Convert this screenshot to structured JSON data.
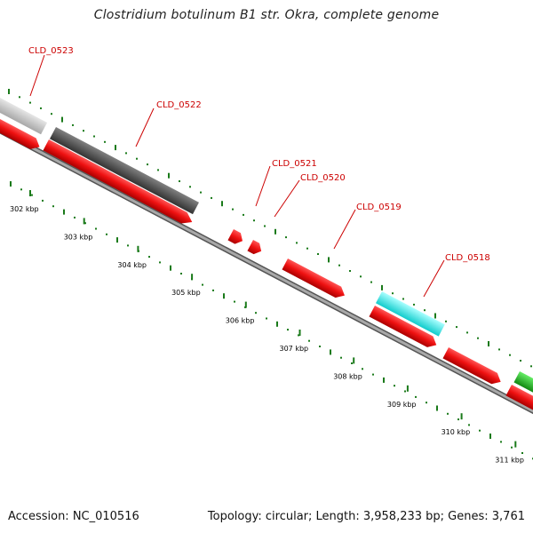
{
  "title": "Clostridium botulinum B1 str. Okra, complete genome",
  "footer": {
    "accession": "Accession: NC_010516",
    "summary": "Topology: circular; Length: 3,958,233 bp; Genes: 3,761"
  },
  "colors": {
    "cds": "#ee1111",
    "gene_gray_light": "#c4c4c4",
    "gene_gray_dark": "#555555",
    "gene_cyan": "#22eeee",
    "gene_green": "#22bb22",
    "label": "#cc0000",
    "gc_track": "#1a7a1a",
    "backbone": "#888888"
  },
  "kbp_ticks": [
    {
      "value": 302,
      "label": "302 kbp"
    },
    {
      "value": 303,
      "label": "303 kbp"
    },
    {
      "value": 304,
      "label": "304 kbp"
    },
    {
      "value": 305,
      "label": "305 kbp"
    },
    {
      "value": 306,
      "label": "306 kbp"
    },
    {
      "value": 307,
      "label": "307 kbp"
    },
    {
      "value": 308,
      "label": "308 kbp"
    },
    {
      "value": 309,
      "label": "309 kbp"
    },
    {
      "value": 310,
      "label": "310 kbp"
    },
    {
      "value": 311,
      "label": "311 kbp"
    }
  ],
  "gene_labels": [
    "CLD_0523",
    "CLD_0522",
    "CLD_0521",
    "CLD_0520",
    "CLD_0519",
    "CLD_0518"
  ]
}
